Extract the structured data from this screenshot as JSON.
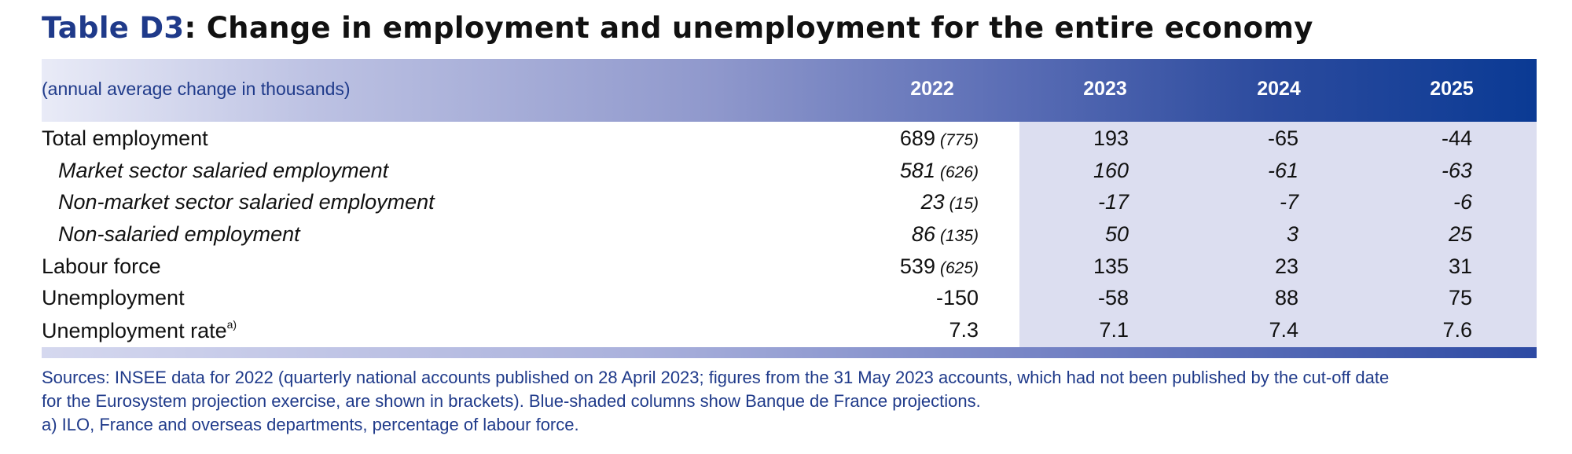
{
  "title": {
    "id": "Table D3",
    "text": ": Change in employment and unemployment for the entire economy"
  },
  "header": {
    "units": "(annual average change in thousands)",
    "years": [
      "2022",
      "2023",
      "2024",
      "2025"
    ]
  },
  "rows": [
    {
      "label": "Total employment",
      "v2022": "689",
      "b2022": "(775)",
      "v2023": "193",
      "v2024": "-65",
      "v2025": "-44"
    },
    {
      "label": "Market sector salaried employment",
      "v2022": "581",
      "b2022": "(626)",
      "v2023": "160",
      "v2024": "-61",
      "v2025": "-63"
    },
    {
      "label": "Non-market sector salaried employment",
      "v2022": "23",
      "b2022": "(15)",
      "v2023": "-17",
      "v2024": "-7",
      "v2025": "-6"
    },
    {
      "label": "Non-salaried employment",
      "v2022": "86",
      "b2022": "(135)",
      "v2023": "50",
      "v2024": "3",
      "v2025": "25"
    },
    {
      "label": "Labour force",
      "v2022": "539",
      "b2022": "(625)",
      "v2023": "135",
      "v2024": "23",
      "v2025": "31"
    },
    {
      "label": "Unemployment",
      "v2022": "-150",
      "v2023": "-58",
      "v2024": "88",
      "v2025": "75"
    },
    {
      "label": "Unemployment rate",
      "note": "a)",
      "v2022": "7.3",
      "v2023": "7.1",
      "v2024": "7.4",
      "v2025": "7.6"
    }
  ],
  "footnotes": {
    "line1": "Sources: INSEE data for 2022 (quarterly national accounts published on 28 April 2023; figures from the 31 May 2023 accounts, which had not been published by the cut-off date",
    "line2": "for the Eurosystem projection exercise, are shown in brackets). Blue-shaded columns show Banque de France projections.",
    "line3": "a)  ILO, France and overseas departments, percentage of labour force."
  },
  "colors": {
    "title_accent": "#1f3a8a",
    "header_dark": "#0a3a94",
    "projection_shade": "#dcdef0"
  }
}
